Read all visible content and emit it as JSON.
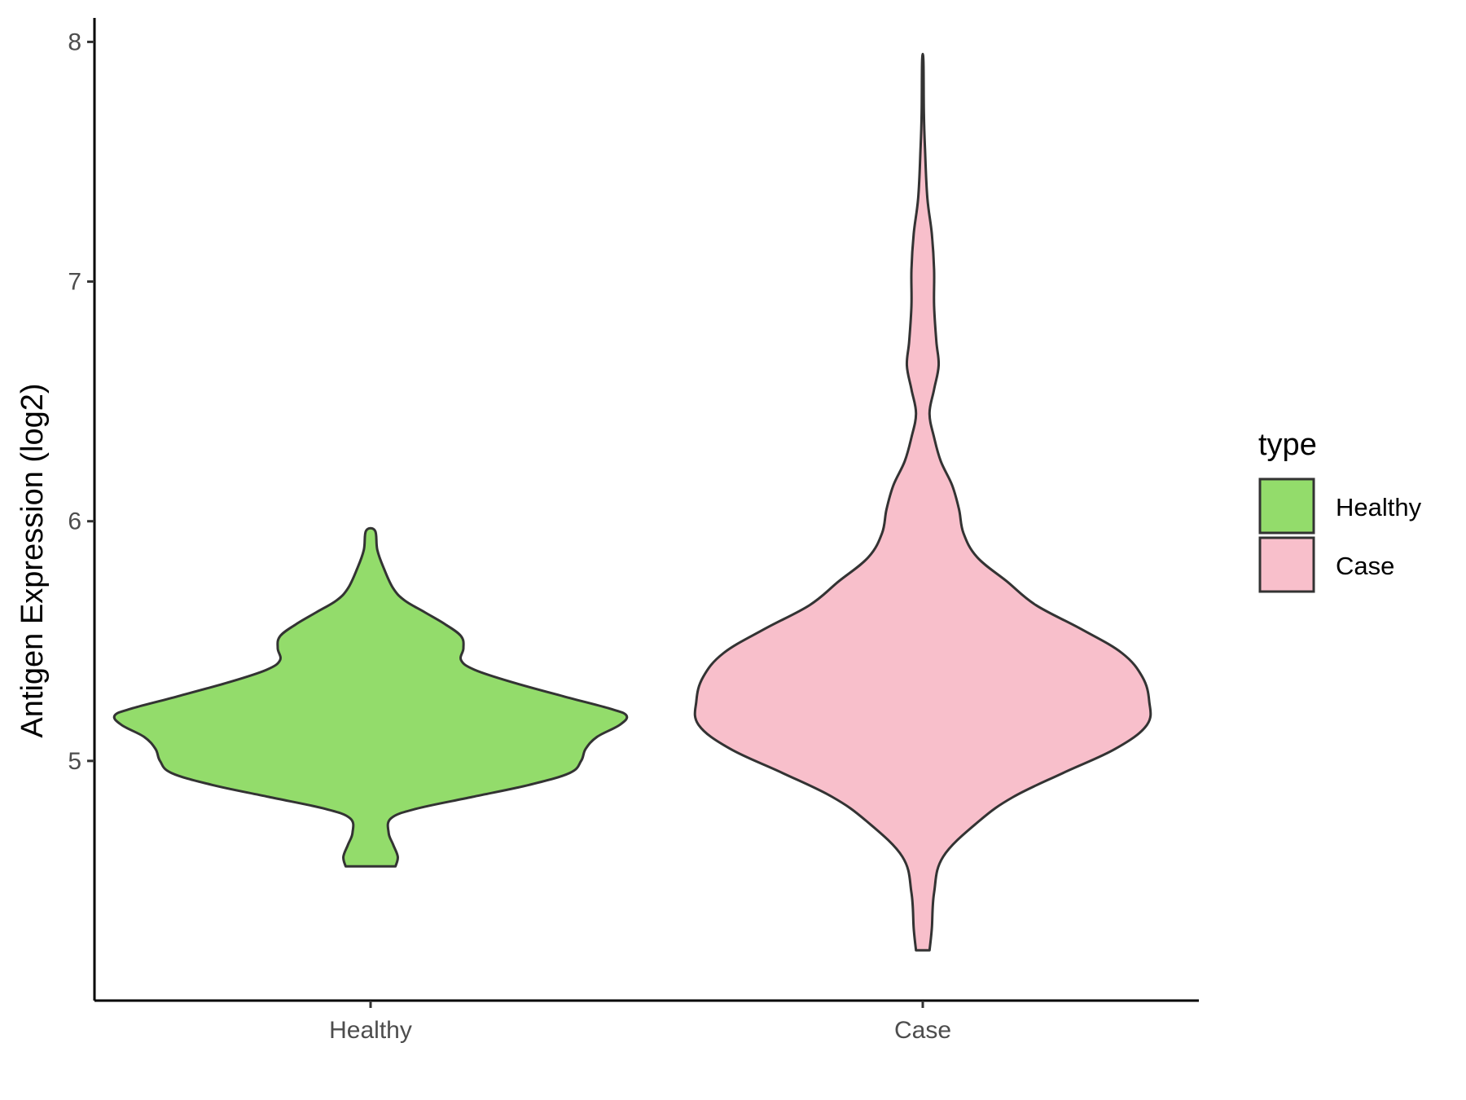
{
  "chart_data": {
    "type": "violin",
    "title": "",
    "xlabel": "",
    "ylabel": "Antigen Expression (log2)",
    "categories": [
      "Healthy",
      "Case"
    ],
    "ylim": [
      4.0,
      8.1
    ],
    "yticks": [
      5,
      6,
      7,
      8
    ],
    "grid": false,
    "legend": {
      "title": "type",
      "position": "right",
      "entries": [
        {
          "label": "Healthy",
          "color": "#93DC6B"
        },
        {
          "label": "Case",
          "color": "#F8BFCB"
        }
      ]
    },
    "series": [
      {
        "name": "Healthy",
        "color": "#93DC6B",
        "range": [
          4.56,
          5.96
        ],
        "profile": [
          [
            4.56,
            0.11
          ],
          [
            4.6,
            0.12
          ],
          [
            4.65,
            0.1
          ],
          [
            4.7,
            0.08
          ],
          [
            4.76,
            0.09
          ],
          [
            4.8,
            0.2
          ],
          [
            4.85,
            0.45
          ],
          [
            4.9,
            0.7
          ],
          [
            4.95,
            0.88
          ],
          [
            5.0,
            0.93
          ],
          [
            5.05,
            0.95
          ],
          [
            5.1,
            1.0
          ],
          [
            5.15,
            1.1
          ],
          [
            5.19,
            1.13
          ],
          [
            5.22,
            1.05
          ],
          [
            5.27,
            0.85
          ],
          [
            5.33,
            0.62
          ],
          [
            5.38,
            0.46
          ],
          [
            5.42,
            0.4
          ],
          [
            5.47,
            0.41
          ],
          [
            5.52,
            0.4
          ],
          [
            5.57,
            0.33
          ],
          [
            5.62,
            0.24
          ],
          [
            5.67,
            0.15
          ],
          [
            5.72,
            0.1
          ],
          [
            5.8,
            0.06
          ],
          [
            5.88,
            0.03
          ],
          [
            5.96,
            0.02
          ]
        ]
      },
      {
        "name": "Case",
        "color": "#F8BFCB",
        "range": [
          4.21,
          7.92
        ],
        "profile": [
          [
            4.21,
            0.03
          ],
          [
            4.3,
            0.04
          ],
          [
            4.45,
            0.05
          ],
          [
            4.6,
            0.09
          ],
          [
            4.75,
            0.25
          ],
          [
            4.85,
            0.4
          ],
          [
            4.95,
            0.62
          ],
          [
            5.05,
            0.85
          ],
          [
            5.15,
            0.99
          ],
          [
            5.25,
            1.0
          ],
          [
            5.35,
            0.97
          ],
          [
            5.45,
            0.88
          ],
          [
            5.55,
            0.7
          ],
          [
            5.65,
            0.5
          ],
          [
            5.75,
            0.37
          ],
          [
            5.85,
            0.24
          ],
          [
            5.95,
            0.18
          ],
          [
            6.05,
            0.16
          ],
          [
            6.15,
            0.13
          ],
          [
            6.25,
            0.08
          ],
          [
            6.35,
            0.05
          ],
          [
            6.45,
            0.03
          ],
          [
            6.55,
            0.05
          ],
          [
            6.65,
            0.07
          ],
          [
            6.75,
            0.06
          ],
          [
            6.9,
            0.05
          ],
          [
            7.05,
            0.05
          ],
          [
            7.2,
            0.04
          ],
          [
            7.35,
            0.02
          ],
          [
            7.55,
            0.01
          ],
          [
            7.7,
            0.005
          ],
          [
            7.92,
            0.003
          ]
        ]
      }
    ]
  }
}
